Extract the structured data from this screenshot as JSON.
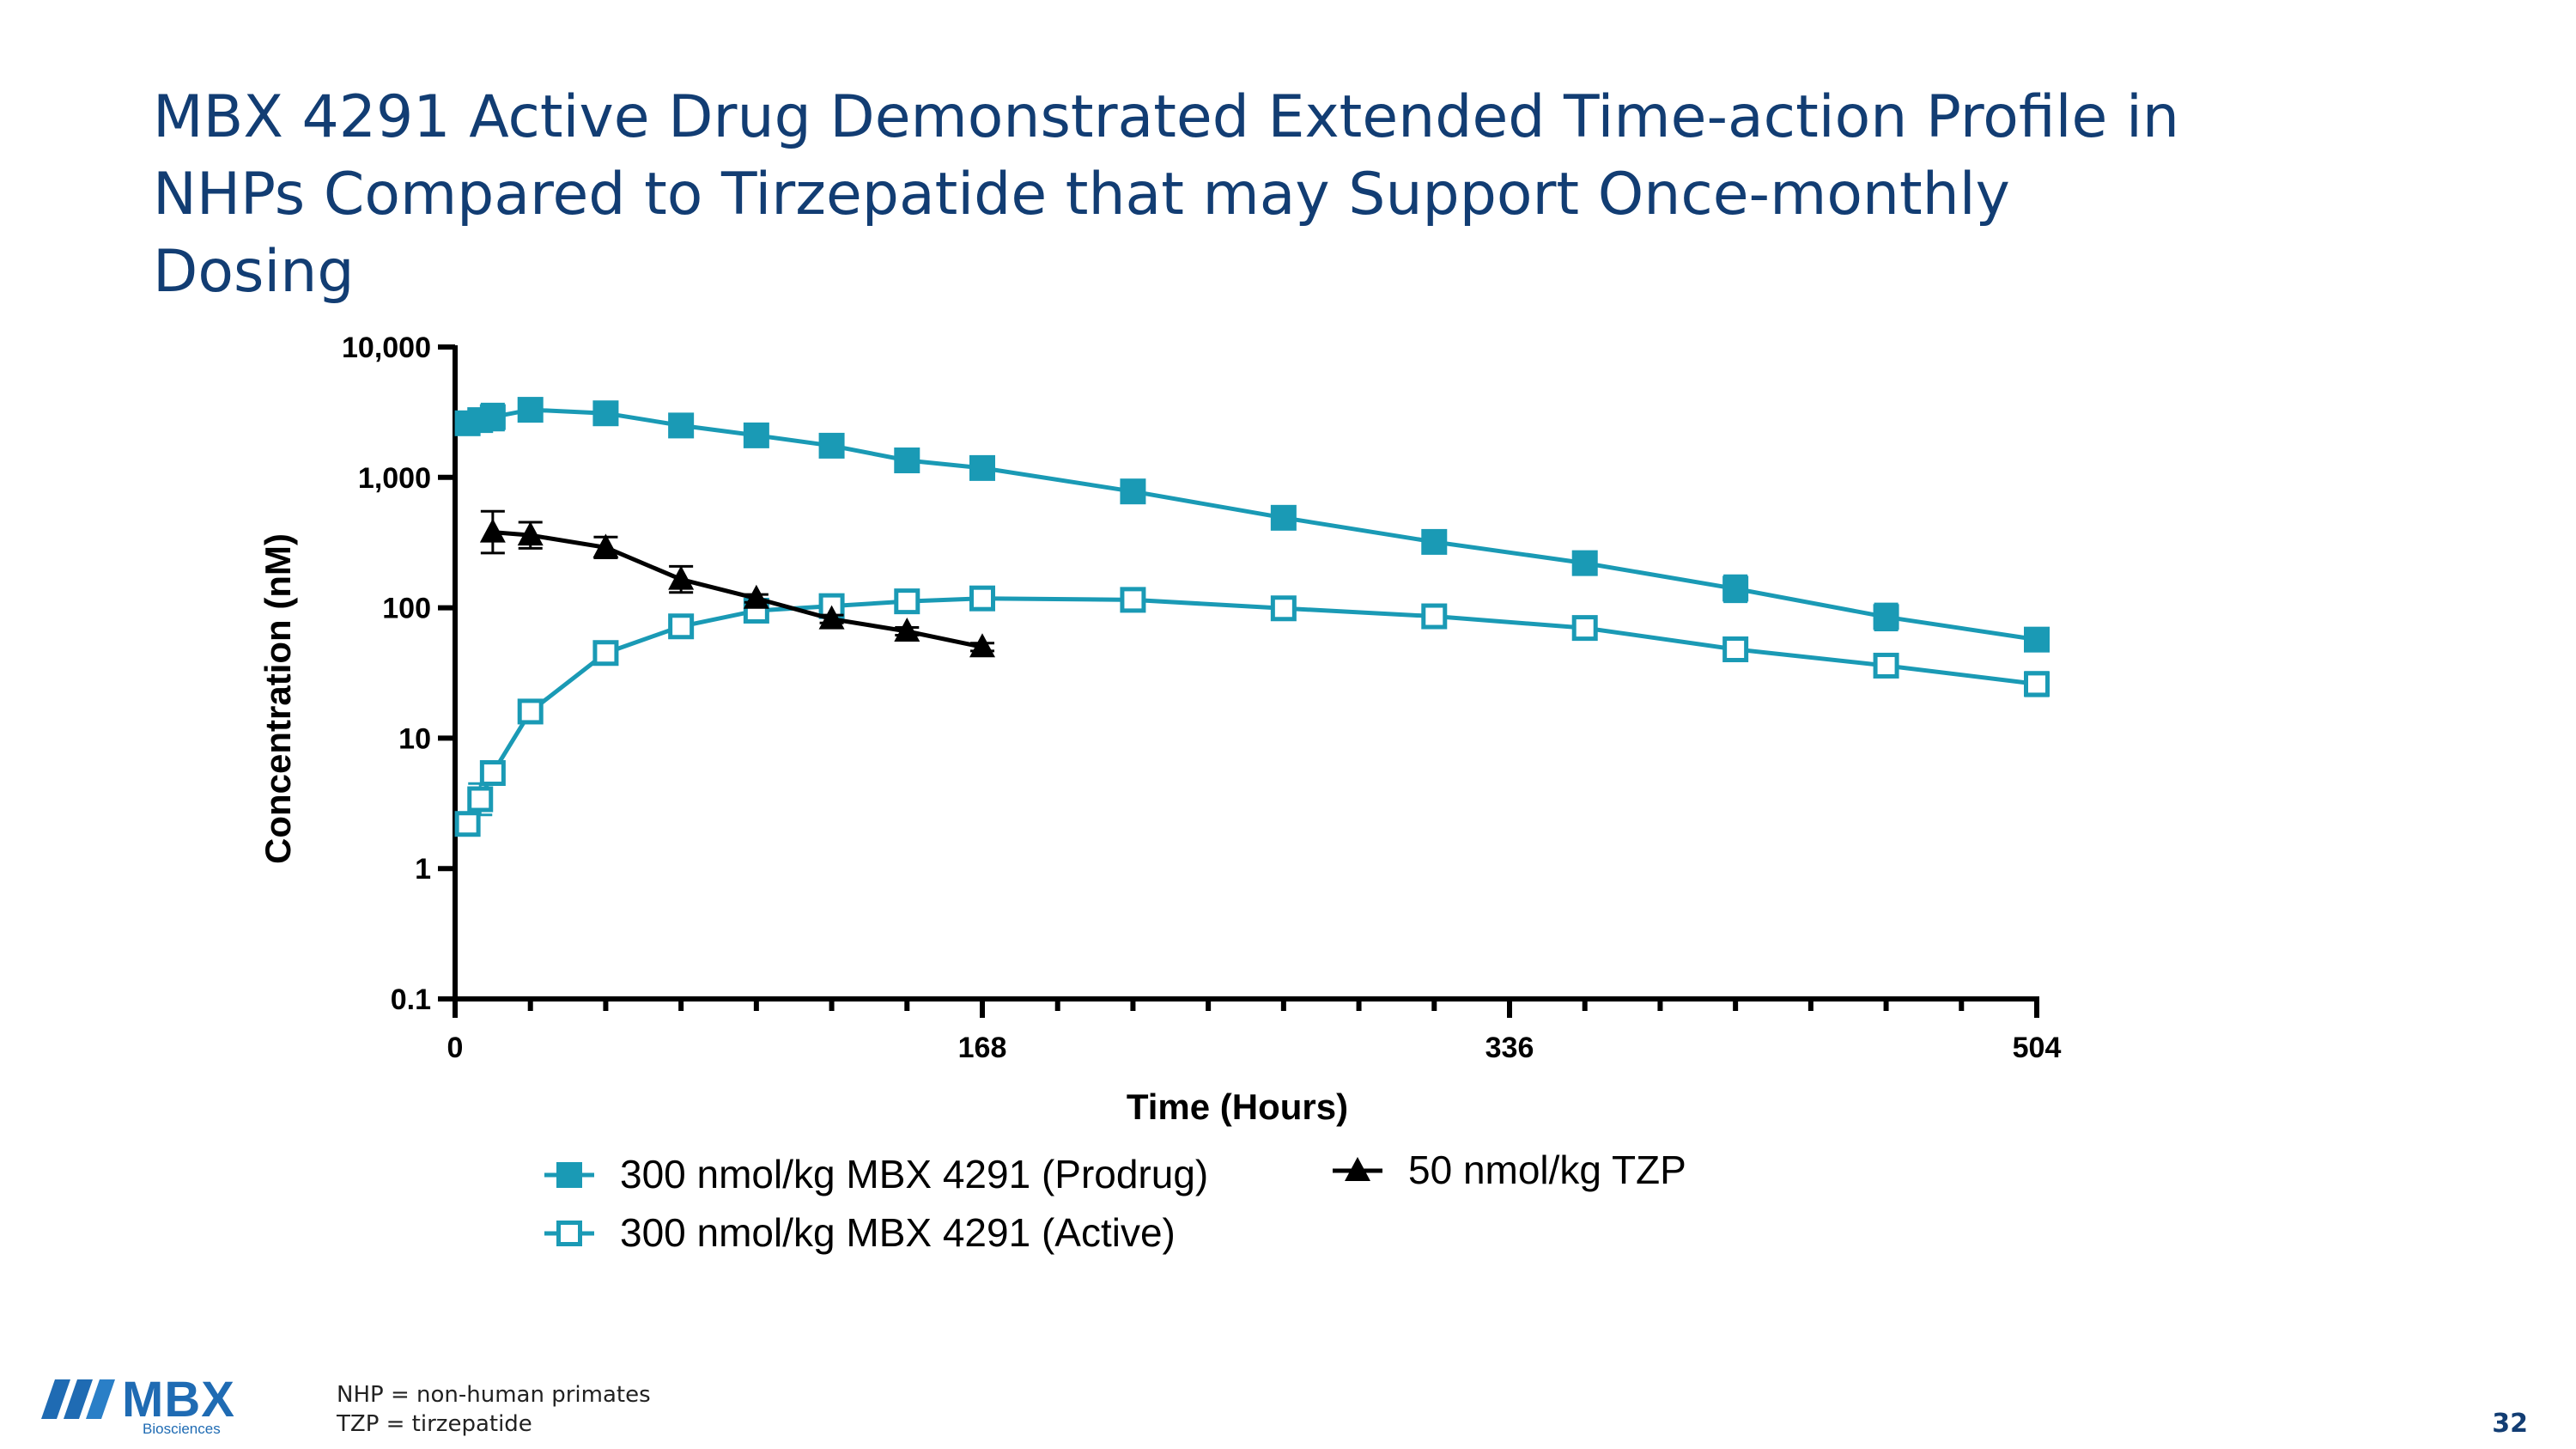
{
  "slide": {
    "title_lines": [
      "MBX 4291 Active Drug Demonstrated Extended Time-action Profile in",
      "NHPs Compared to Tirzepatide that may Support Once-monthly",
      "Dosing"
    ],
    "footnotes": [
      "NHP = non-human primates",
      "TZP = tirzepatide"
    ],
    "page_number": "32",
    "logo": {
      "wordmark": "MBX",
      "subtext": "Biosciences"
    },
    "colors": {
      "title": "#123d73",
      "teal": "#1a9ab5",
      "black": "#000000",
      "logo": "#1f6bb3"
    }
  },
  "chart_data": {
    "type": "line",
    "title": "",
    "xlabel": "Time (Hours)",
    "ylabel": "Concentration (nM)",
    "xlim": [
      0,
      504
    ],
    "ylim": [
      0.1,
      10000
    ],
    "yscale": "log",
    "x_ticks": [
      0,
      168,
      336,
      504
    ],
    "x_tick_labels": [
      "0",
      "168",
      "336",
      "504"
    ],
    "x_minor_ticks": [
      24,
      48,
      72,
      96,
      120,
      144,
      192,
      216,
      240,
      264,
      288,
      312,
      360,
      384,
      408,
      432,
      456,
      480
    ],
    "y_ticks": [
      0.1,
      1,
      10,
      100,
      1000,
      10000
    ],
    "y_tick_labels": [
      "0.1",
      "1",
      "10",
      "100",
      "1,000",
      "10,000"
    ],
    "legend_position": "bottom",
    "series": [
      {
        "name": "300 nmol/kg MBX 4291 (Prodrug)",
        "marker": "square-filled",
        "color": "#1a9ab5",
        "x": [
          4,
          8,
          12,
          24,
          48,
          72,
          96,
          120,
          144,
          168,
          216,
          264,
          312,
          360,
          408,
          456,
          504
        ],
        "y": [
          2600,
          2750,
          2900,
          3300,
          3100,
          2500,
          2100,
          1750,
          1350,
          1180,
          780,
          490,
          320,
          220,
          140,
          85,
          57
        ],
        "error": [
          0.06,
          0.08,
          0.1,
          0.05,
          0.03,
          0.03,
          0.03,
          0.03,
          0.03,
          0.03,
          0.03,
          0.03,
          0.04,
          0.07,
          0.1,
          0.1,
          0.08
        ]
      },
      {
        "name": "300 nmol/kg MBX 4291 (Active)",
        "marker": "square-open",
        "color": "#1a9ab5",
        "x": [
          4,
          8,
          12,
          24,
          48,
          72,
          96,
          120,
          144,
          168,
          216,
          264,
          312,
          360,
          408,
          456,
          504
        ],
        "y": [
          2.2,
          3.4,
          5.4,
          16,
          45,
          72,
          95,
          103,
          112,
          118,
          115,
          99,
          86,
          70,
          48,
          36,
          26
        ],
        "error": [
          0.08,
          0.12,
          0.05,
          0.02,
          0.02,
          0.02,
          0.02,
          0.02,
          0.02,
          0.02,
          0.02,
          0.03,
          0.04,
          0.05,
          0.07,
          0.07,
          0.09
        ]
      },
      {
        "name": "50 nmol/kg TZP",
        "marker": "triangle-filled",
        "color": "#000000",
        "x": [
          12,
          24,
          48,
          72,
          96,
          120,
          144,
          168
        ],
        "y": [
          380,
          360,
          290,
          165,
          118,
          82,
          66,
          50
        ],
        "error": [
          0.16,
          0.1,
          0.08,
          0.1,
          0.03,
          0.03,
          0.03,
          0.03
        ]
      }
    ]
  }
}
